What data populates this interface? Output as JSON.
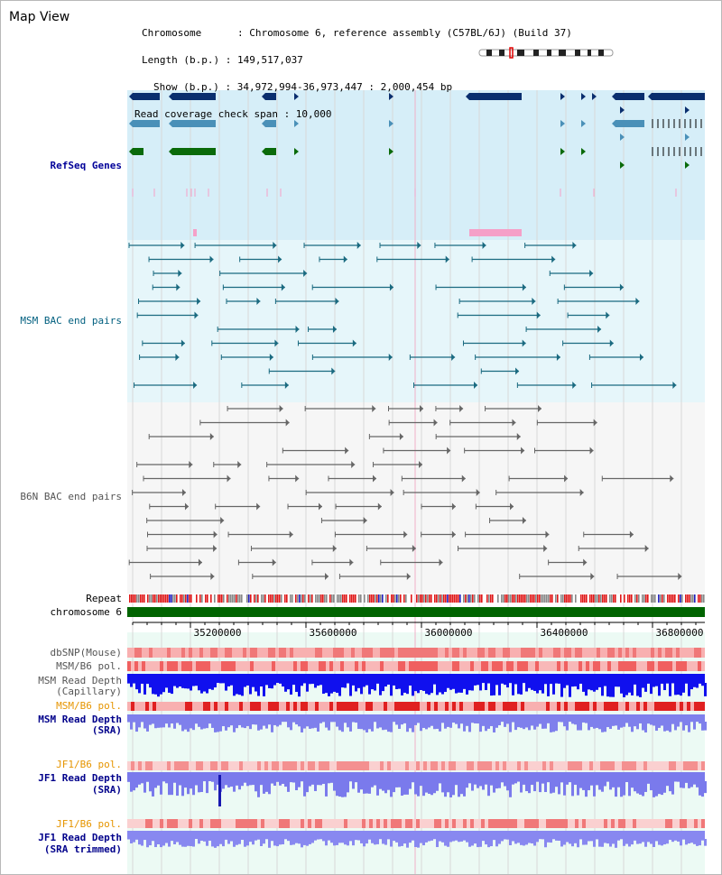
{
  "title": "Map View",
  "info": {
    "chromosome": "Chromosome      : Chromosome 6, reference assembly (C57BL/6J) (Build 37)",
    "length": "Length (b.p.) : 149,517,037",
    "show": "Show (b.p.) : 34,972,994-36,973,447 : 2,000,454 bp",
    "span": "Read coverage check span : 10,000"
  },
  "tracks": {
    "refseq": {
      "label": "RefSeq Genes",
      "color": "#000099"
    },
    "msm_bac": {
      "label": "MSM BAC end pairs",
      "color": "#005f7f"
    },
    "b6n_bac": {
      "label": "B6N BAC end pairs",
      "color": "#555555"
    },
    "repeat": {
      "label": "Repeat"
    },
    "chrom": {
      "label": "chromosome 6"
    },
    "dbsnp": {
      "label": "dbSNP(Mouse)"
    },
    "msm_pol_1": {
      "label": "MSM/B6 pol."
    },
    "msm_depth_cap": {
      "label1": "MSM Read Depth",
      "label2": "(Capillary)"
    },
    "msm_pol_2": {
      "label": "MSM/B6 pol."
    },
    "msm_depth_sra": {
      "label1": "MSM Read Depth",
      "label2": "(SRA)"
    },
    "jf1_pol_1": {
      "label": "JF1/B6 pol."
    },
    "jf1_depth_sra": {
      "label1": "JF1 Read Depth",
      "label2": "(SRA)"
    },
    "jf1_pol_2": {
      "label": "JF1/B6 pol."
    },
    "jf1_depth_trim": {
      "label1": "JF1 Read Depth",
      "label2": "(SRA trimmed)"
    }
  },
  "axis_ticks": [
    "35200000",
    "35600000",
    "36000000",
    "36400000",
    "36800000"
  ],
  "colors": {
    "refseq_bg": "#d6eef8",
    "msm_bg": "#e6f6fa",
    "b6n_bg": "#f6f6f6",
    "chrom_bar": "#006400",
    "depth_dark": "#0000ee",
    "depth_light": "#8a8af0",
    "snp": "#f08080",
    "label_blue": "#00008b",
    "label_teal": "#00688b",
    "label_orange": "#e69500",
    "label_gray": "#555555"
  }
}
